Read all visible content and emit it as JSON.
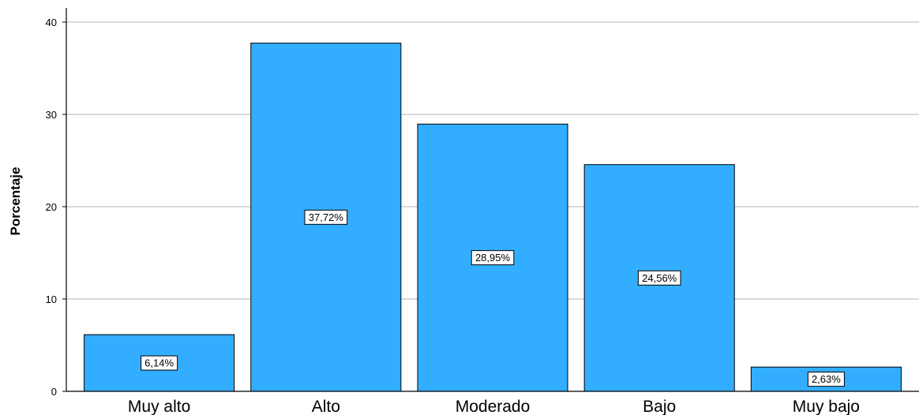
{
  "chart_data": {
    "type": "bar",
    "ylabel": "Porcentaje",
    "xlabel": "",
    "ylim": [
      0,
      40
    ],
    "yticks": [
      0,
      10,
      20,
      30,
      40
    ],
    "grid": true,
    "bar_color": "#33adff",
    "categories": [
      "Muy alto",
      "Alto",
      "Moderado",
      "Bajo",
      "Muy bajo"
    ],
    "values": [
      6.14,
      37.72,
      28.95,
      24.56,
      2.63
    ],
    "data_labels": [
      "6,14%",
      "37,72%",
      "28,95%",
      "24,56%",
      "2,63%"
    ]
  }
}
